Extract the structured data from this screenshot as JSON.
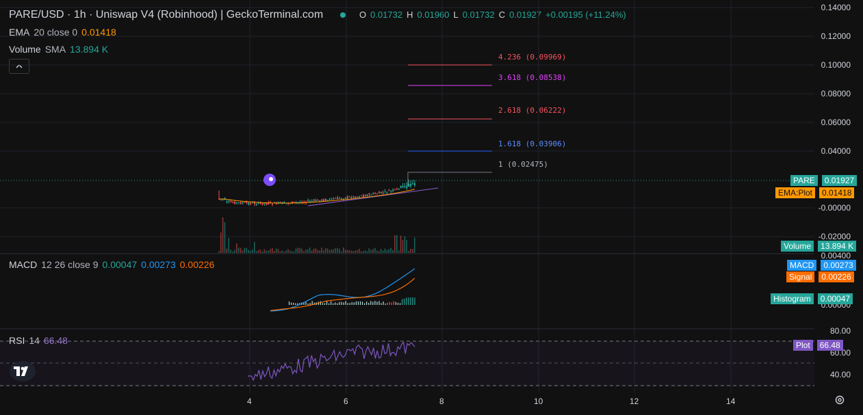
{
  "header": {
    "title": "PARE/USD · 1h · Uniswap V4 (Robinhood) | GeckoTerminal.com",
    "ohlc": {
      "o_label": "O",
      "o_value": "0.01732",
      "h_label": "H",
      "h_value": "0.01960",
      "l_label": "L",
      "l_value": "0.01732",
      "c_label": "C",
      "c_value": "0.01927",
      "change": "+0.00195 (+11.24%)"
    }
  },
  "legend": {
    "ema_label": "EMA",
    "ema_params": "20 close 0",
    "ema_value": "0.01418",
    "volume_label": "Volume",
    "volume_params": "SMA",
    "volume_value": "13.894 K",
    "collapse_icon": "chevron-up-icon"
  },
  "price_axis": {
    "labels": [
      "0.14000",
      "0.12000",
      "0.10000",
      "0.08000",
      "0.06000",
      "0.04000",
      "-0.00000",
      "-0.02000"
    ]
  },
  "price_tags": {
    "pare_name": "PARE",
    "pare_value": "0.01927",
    "ema_name": "EMA:Plot",
    "ema_value": "0.01418",
    "volume_name": "Volume",
    "volume_value": "13.894 K"
  },
  "fib_levels": [
    {
      "label": "4.236 (0.09969)",
      "color": "#f7525f"
    },
    {
      "label": "3.618 (0.08538)",
      "color": "#e040fb"
    },
    {
      "label": "2.618 (0.06222)",
      "color": "#f7525f"
    },
    {
      "label": "1.618 (0.03906)",
      "color": "#2962ff"
    },
    {
      "label": "1 (0.02475)",
      "color": "#787b86"
    }
  ],
  "macd": {
    "label": "MACD",
    "params": "12 26 close 9",
    "hist_value": "0.00047",
    "macd_value": "0.00273",
    "signal_value": "0.00226",
    "axis_top": "0.00400",
    "axis_bottom": "0.00000",
    "tag_macd_name": "MACD",
    "tag_macd_value": "0.00273",
    "tag_signal_name": "Signal",
    "tag_signal_value": "0.00226",
    "tag_hist_name": "Histogram",
    "tag_hist_value": "0.00047"
  },
  "rsi": {
    "label": "RSI",
    "params": "14",
    "value": "66.48",
    "axis_labels": [
      "80.00",
      "60.00",
      "40.00"
    ],
    "tag_name": "Plot",
    "tag_value": "66.48"
  },
  "time_axis": {
    "labels": [
      "4",
      "6",
      "8",
      "10",
      "12",
      "14"
    ]
  },
  "logo_text": "TV",
  "colors": {
    "background": "#111111",
    "up": "#26a69a",
    "down": "#ef5350",
    "ema": "#ff9800",
    "macd": "#2196f3",
    "signal": "#ff6d00",
    "rsi": "#7e57c2"
  }
}
